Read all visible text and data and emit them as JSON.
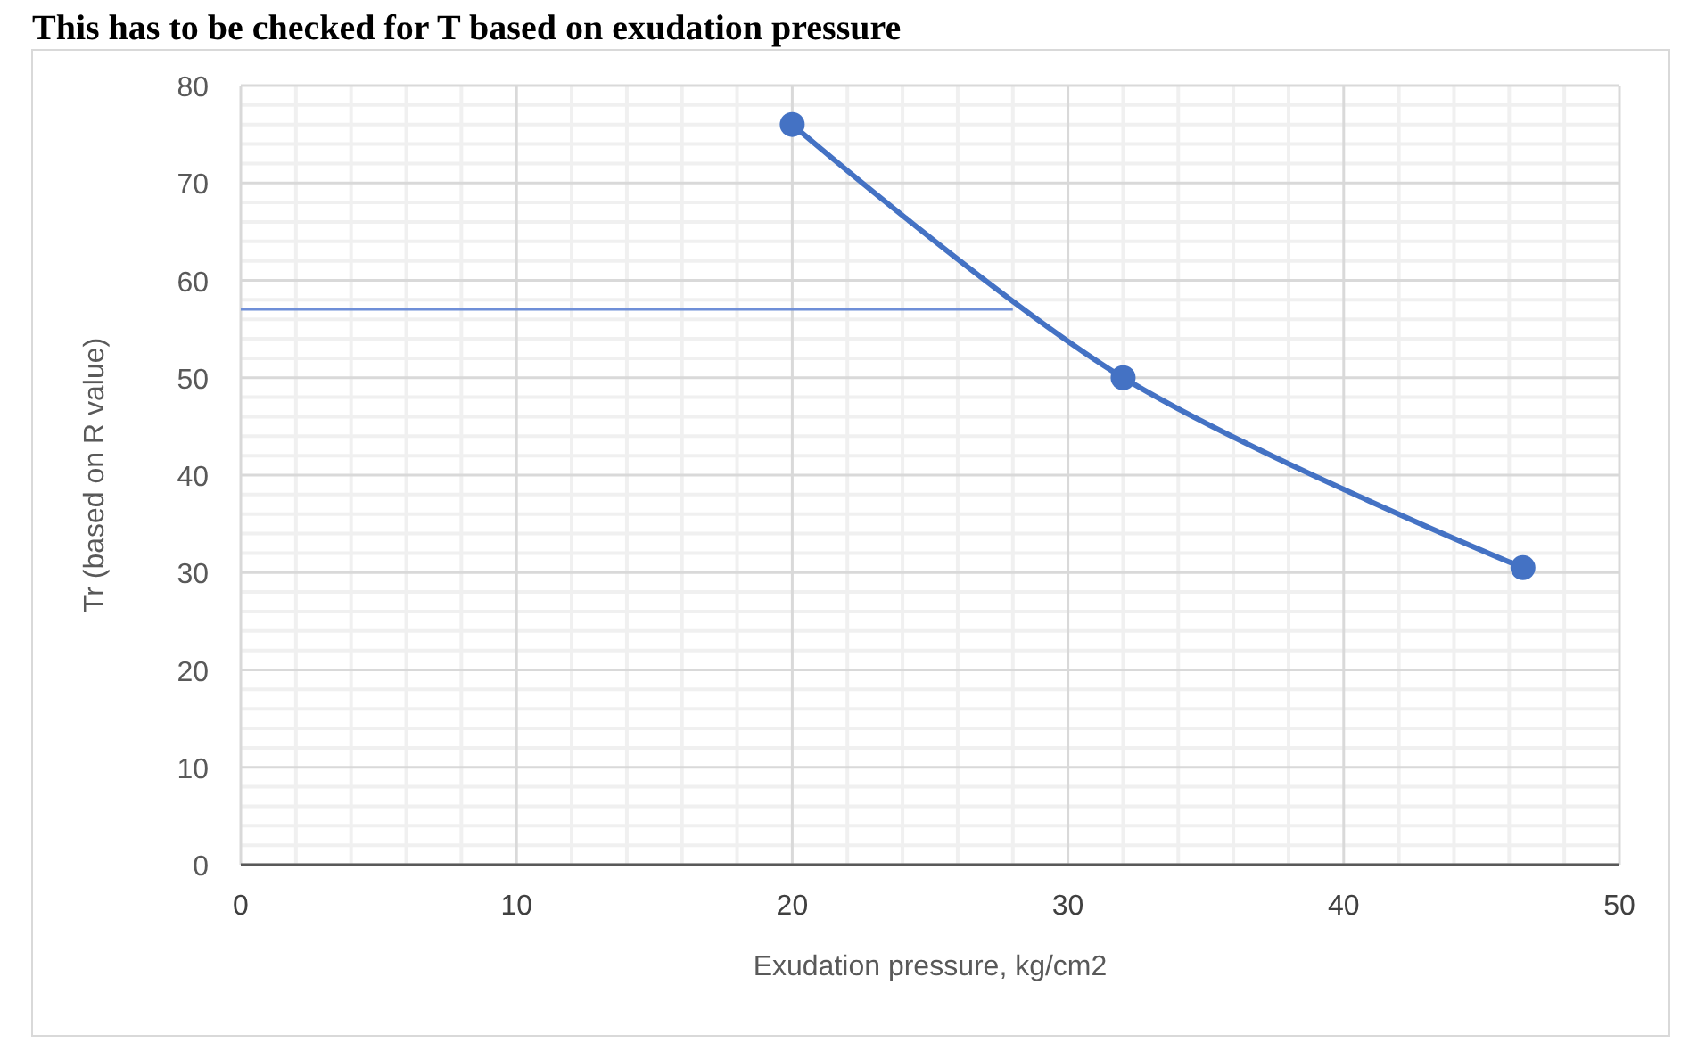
{
  "chart_data": {
    "type": "line",
    "title": "This has to be checked for T based on exudation pressure",
    "xlabel": "Exudation pressure,  kg/cm2",
    "ylabel": "Tr (based on R value)",
    "series": [
      {
        "color": "#4472c4",
        "x": [
          20,
          32,
          46.5
        ],
        "values": [
          76,
          50,
          30.5
        ],
        "marker": "circle"
      },
      {
        "color": "#6f8fd8",
        "x": [
          0,
          28
        ],
        "values": [
          57,
          57
        ],
        "marker": "none"
      }
    ],
    "xlim": [
      0,
      50
    ],
    "xticks": [
      0,
      10,
      20,
      30,
      40,
      50
    ],
    "ylim": [
      0,
      80
    ],
    "yticks": [
      0,
      10,
      20,
      30,
      40,
      50,
      60,
      70,
      80
    ],
    "grid": true
  }
}
